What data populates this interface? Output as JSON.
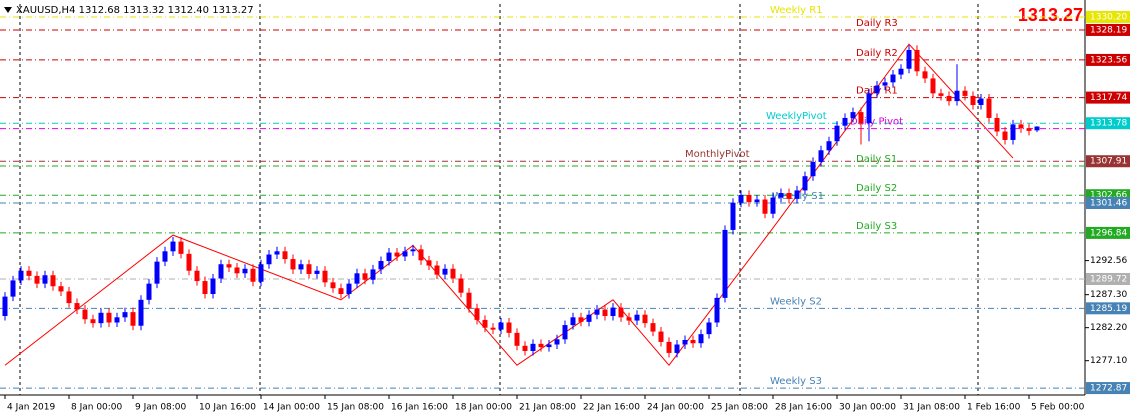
{
  "chart_data": {
    "type": "candlestick",
    "title": "XAUUSD,H4 1312.68 1313.32 1312.40 1313.27",
    "current_price": 1313.27,
    "current_color": "#ff0000",
    "up_color": "#0000ff",
    "down_color": "#ff0000",
    "ylim": [
      1271.8,
      1332.2
    ],
    "yticks": [
      1292.56,
      {
        "value": 1287.3,
        "label": "1287.30"
      },
      {
        "value": 1282.2,
        "label": "1282.20"
      },
      {
        "value": 1277.1,
        "label": "1277.10"
      }
    ],
    "grid": false,
    "categories": [
      "4 Jan 2019",
      null,
      null,
      null,
      null,
      null,
      null,
      null,
      "8 Jan 00:00",
      null,
      null,
      null,
      null,
      null,
      null,
      null,
      "9 Jan 08:00",
      null,
      null,
      null,
      null,
      null,
      null,
      null,
      "10 Jan 16:00",
      null,
      null,
      null,
      null,
      null,
      null,
      null,
      "14 Jan 00:00",
      null,
      null,
      null,
      null,
      null,
      null,
      null,
      "15 Jan 08:00",
      null,
      null,
      null,
      null,
      null,
      null,
      null,
      "16 Jan 16:00",
      null,
      null,
      null,
      null,
      null,
      null,
      null,
      "18 Jan 00:00",
      null,
      null,
      null,
      null,
      null,
      null,
      null,
      "21 Jan 08:00",
      null,
      null,
      null,
      null,
      null,
      null,
      null,
      "22 Jan 16:00",
      null,
      null,
      null,
      null,
      null,
      null,
      null,
      "24 Jan 00:00",
      null,
      null,
      null,
      null,
      null,
      null,
      null,
      "25 Jan 08:00",
      null,
      null,
      null,
      null,
      null,
      null,
      null,
      "28 Jan 16:00",
      null,
      null,
      null,
      null,
      null,
      null,
      null,
      "30 Jan 00:00",
      null,
      null,
      null,
      null,
      null,
      null,
      null,
      "31 Jan 08:00",
      null,
      null,
      null,
      null,
      null,
      null,
      null,
      "1 Feb 16:00",
      null,
      null,
      null,
      null,
      null,
      null,
      null,
      "5 Feb 00:00",
      null
    ],
    "open": [
      1284.0,
      1287.0,
      1289.5,
      1291.0,
      1290.2,
      1289.0,
      1290.3,
      1288.6,
      1287.8,
      1286.0,
      1285.0,
      1283.5,
      1282.9,
      1284.5,
      1283.0,
      1283.8,
      1284.6,
      1282.5,
      1286.5,
      1289.0,
      1292.4,
      1294.0,
      1295.5,
      1293.6,
      1291.0,
      1289.4,
      1287.4,
      1289.8,
      1292.0,
      1291.5,
      1290.6,
      1291.3,
      1289.3,
      1292.0,
      1293.5,
      1294.0,
      1292.8,
      1291.2,
      1292.0,
      1290.5,
      1291.0,
      1289.2,
      1288.3,
      1287.4,
      1289.0,
      1290.6,
      1289.6,
      1291.2,
      1292.5,
      1293.8,
      1293.2,
      1294.0,
      1294.3,
      1292.6,
      1291.8,
      1290.4,
      1291.3,
      1289.8,
      1287.6,
      1285.2,
      1283.4,
      1282.2,
      1281.9,
      1283.0,
      1281.4,
      1279.4,
      1278.6,
      1279.7,
      1279.2,
      1279.6,
      1280.4,
      1282.6,
      1283.8,
      1283.1,
      1284.2,
      1285.0,
      1284.0,
      1285.3,
      1283.8,
      1283.3,
      1284.2,
      1282.9,
      1281.6,
      1280.0,
      1278.3,
      1279.6,
      1280.3,
      1279.8,
      1281.2,
      1283.0,
      1286.8,
      1297.3,
      1301.5,
      1302.7,
      1301.6,
      1302.0,
      1299.8,
      1302.3,
      1303.0,
      1302.1,
      1303.4,
      1305.6,
      1307.8,
      1309.6,
      1311.0,
      1313.4,
      1314.6,
      1315.5,
      1313.8,
      1318.4,
      1319.6,
      1320.1,
      1321.3,
      1322.2,
      1325.1,
      1321.8,
      1320.7,
      1318.4,
      1318.0,
      1317.2,
      1318.8,
      1318.0,
      1316.6,
      1317.6,
      1314.6,
      1312.5,
      1311.2,
      1313.6,
      1313.0,
      1312.68
    ],
    "high": [
      1287.7,
      1290.2,
      1291.7,
      1291.7,
      1290.9,
      1291.0,
      1291.0,
      1289.3,
      1288.5,
      1286.7,
      1285.7,
      1284.2,
      1285.2,
      1285.2,
      1284.5,
      1285.3,
      1285.3,
      1287.2,
      1289.7,
      1293.1,
      1294.7,
      1296.2,
      1296.2,
      1294.3,
      1291.7,
      1290.1,
      1290.5,
      1292.7,
      1292.7,
      1292.2,
      1292.0,
      1292.0,
      1292.7,
      1294.2,
      1294.7,
      1294.7,
      1293.5,
      1292.7,
      1292.7,
      1291.7,
      1291.7,
      1289.9,
      1289.0,
      1289.7,
      1291.3,
      1291.3,
      1291.9,
      1293.2,
      1294.5,
      1294.5,
      1294.7,
      1295.0,
      1295.0,
      1293.3,
      1292.5,
      1292.0,
      1292.0,
      1290.5,
      1288.3,
      1285.9,
      1284.1,
      1282.9,
      1283.7,
      1283.7,
      1282.1,
      1280.1,
      1280.4,
      1280.4,
      1280.3,
      1281.1,
      1283.3,
      1284.5,
      1284.5,
      1284.9,
      1285.7,
      1285.7,
      1286.0,
      1286.0,
      1284.5,
      1284.9,
      1284.9,
      1283.6,
      1282.3,
      1280.7,
      1280.3,
      1281.0,
      1281.0,
      1281.9,
      1283.7,
      1287.5,
      1298.0,
      1302.2,
      1303.4,
      1303.4,
      1302.7,
      1302.7,
      1303.0,
      1303.7,
      1303.7,
      1304.1,
      1306.3,
      1308.5,
      1310.3,
      1311.7,
      1314.1,
      1315.3,
      1316.2,
      1316.2,
      1319.1,
      1320.3,
      1320.8,
      1322.0,
      1322.9,
      1325.8,
      1325.8,
      1322.5,
      1321.4,
      1319.1,
      1318.7,
      1322.9,
      1319.5,
      1318.7,
      1318.3,
      1318.3,
      1315.3,
      1313.2,
      1314.3,
      1314.3,
      1313.7,
      1313.32
    ],
    "low": [
      1283.3,
      1286.3,
      1288.8,
      1289.5,
      1288.3,
      1288.3,
      1287.9,
      1287.1,
      1285.3,
      1284.3,
      1282.8,
      1282.2,
      1282.2,
      1282.3,
      1282.3,
      1283.1,
      1281.8,
      1281.8,
      1285.8,
      1288.3,
      1291.7,
      1293.3,
      1292.9,
      1290.3,
      1288.7,
      1286.7,
      1286.7,
      1289.1,
      1290.8,
      1289.9,
      1289.9,
      1288.6,
      1288.6,
      1291.3,
      1292.8,
      1292.1,
      1290.5,
      1290.5,
      1289.8,
      1289.8,
      1288.5,
      1287.6,
      1286.7,
      1286.7,
      1288.3,
      1288.9,
      1288.9,
      1290.5,
      1291.8,
      1292.5,
      1292.5,
      1293.3,
      1291.9,
      1291.1,
      1289.7,
      1289.7,
      1289.1,
      1286.9,
      1284.5,
      1282.7,
      1281.5,
      1281.2,
      1281.2,
      1280.7,
      1278.7,
      1277.9,
      1277.9,
      1278.5,
      1278.5,
      1278.9,
      1279.7,
      1281.9,
      1282.4,
      1282.4,
      1283.5,
      1283.3,
      1283.3,
      1283.1,
      1282.6,
      1282.6,
      1282.2,
      1280.9,
      1279.3,
      1277.6,
      1277.6,
      1278.9,
      1279.1,
      1279.1,
      1280.5,
      1282.3,
      1286.1,
      1296.6,
      1300.8,
      1300.9,
      1300.9,
      1299.1,
      1299.1,
      1301.6,
      1301.4,
      1301.4,
      1302.7,
      1304.9,
      1307.1,
      1308.9,
      1310.3,
      1312.7,
      1313.9,
      1310.5,
      1311.0,
      1317.7,
      1318.9,
      1319.4,
      1320.6,
      1321.5,
      1321.1,
      1320.0,
      1317.7,
      1317.3,
      1316.5,
      1316.5,
      1317.3,
      1315.9,
      1315.9,
      1313.9,
      1311.8,
      1310.5,
      1310.5,
      1312.3,
      1311.9,
      1312.4
    ],
    "close": [
      1287.0,
      1289.5,
      1291.0,
      1290.2,
      1289.0,
      1290.3,
      1288.6,
      1287.8,
      1286.0,
      1285.0,
      1283.5,
      1282.9,
      1284.5,
      1283.0,
      1283.8,
      1284.6,
      1282.5,
      1286.5,
      1289.0,
      1292.4,
      1294.0,
      1295.5,
      1293.6,
      1291.0,
      1289.4,
      1287.4,
      1289.8,
      1292.0,
      1291.5,
      1290.6,
      1291.3,
      1289.3,
      1292.0,
      1293.5,
      1294.0,
      1292.8,
      1291.2,
      1292.0,
      1290.5,
      1291.0,
      1289.2,
      1288.3,
      1287.4,
      1289.0,
      1290.6,
      1289.6,
      1291.2,
      1292.5,
      1293.8,
      1293.2,
      1294.0,
      1294.3,
      1292.6,
      1291.8,
      1290.4,
      1291.3,
      1289.8,
      1287.6,
      1285.2,
      1283.4,
      1282.2,
      1281.9,
      1283.0,
      1281.4,
      1279.4,
      1278.6,
      1279.7,
      1279.2,
      1279.6,
      1280.4,
      1282.6,
      1283.8,
      1283.1,
      1284.2,
      1285.0,
      1284.0,
      1285.3,
      1283.8,
      1283.3,
      1284.2,
      1282.9,
      1281.6,
      1280.0,
      1278.3,
      1279.6,
      1280.3,
      1279.8,
      1281.2,
      1283.0,
      1286.8,
      1297.3,
      1301.5,
      1302.7,
      1301.6,
      1302.0,
      1299.8,
      1302.3,
      1303.0,
      1302.1,
      1303.4,
      1305.6,
      1307.8,
      1309.6,
      1311.0,
      1313.4,
      1314.6,
      1315.5,
      1313.8,
      1318.4,
      1319.6,
      1320.1,
      1321.3,
      1322.2,
      1325.1,
      1321.8,
      1320.7,
      1318.4,
      1318.0,
      1317.2,
      1318.8,
      1318.0,
      1316.6,
      1317.6,
      1314.6,
      1312.5,
      1311.2,
      1313.6,
      1313.0,
      1312.6,
      1313.27
    ],
    "zigzag": {
      "color": "#ff0000",
      "index": [
        0,
        21,
        42,
        51,
        64,
        76,
        83,
        96,
        113,
        126
      ],
      "values": [
        1276.4,
        1296.5,
        1286.5,
        1294.9,
        1276.4,
        1286.5,
        1276.4,
        1297.6,
        1326.0,
        1308.4
      ]
    },
    "levels": [
      {
        "name": "Weekly R1",
        "value": 1330.2,
        "label": "1330.20",
        "color": "#e6e600"
      },
      {
        "name": "Daily R3",
        "value": 1328.19,
        "label": "1328.19",
        "color": "#cc0000"
      },
      {
        "name": "Daily R2",
        "value": 1323.56,
        "label": "1323.56",
        "color": "#cc0000"
      },
      {
        "name": "Daily R1",
        "value": 1317.74,
        "label": "1317.74",
        "color": "#cc0000"
      },
      {
        "name": "WeeklyPivot",
        "value": 1313.78,
        "label": "1313.78",
        "color": "#00cccc"
      },
      {
        "name": "Daily Pivot",
        "value": 1312.95,
        "color": "#e000e0"
      },
      {
        "name": "MonthlyPivot",
        "value": 1307.91,
        "label": "1307.91",
        "color": "#993333"
      },
      {
        "name": "Daily S1",
        "value": 1307.17,
        "color": "#22aa22"
      },
      {
        "name": "Daily S2",
        "value": 1302.66,
        "label": "1302.66",
        "color": "#22aa22"
      },
      {
        "name": "Weekly S1",
        "value": 1301.46,
        "label": "1301.46",
        "color": "#4682b4"
      },
      {
        "name": "Daily S3",
        "value": 1296.84,
        "label": "1296.84",
        "color": "#22aa22"
      },
      {
        "value": 1289.72,
        "label": "1289.72",
        "color": "#b0b0b0"
      },
      {
        "name": "Weekly S2",
        "value": 1285.19,
        "label": "1285.19",
        "color": "#4682b4"
      },
      {
        "name": "Weekly S3",
        "value": 1272.87,
        "label": "1272.87",
        "color": "#4682b4"
      }
    ]
  }
}
